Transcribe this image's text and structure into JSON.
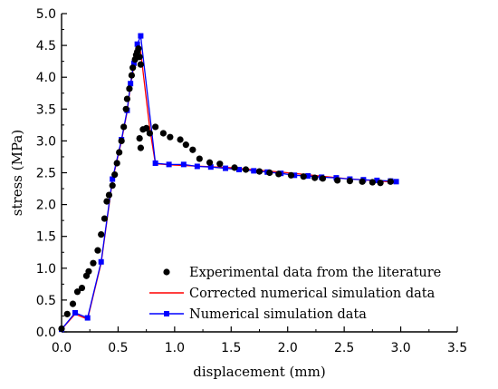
{
  "chart_data": {
    "type": "scatter",
    "title": "",
    "xlabel": "displacement (mm)",
    "ylabel": "stress (MPa)",
    "xlim": [
      0.0,
      3.5
    ],
    "ylim": [
      0.0,
      5.0
    ],
    "xticks": [
      0.0,
      0.5,
      1.0,
      1.5,
      2.0,
      2.5,
      3.0,
      3.5
    ],
    "xtick_labels": [
      "0.0",
      "0.5",
      "1.0",
      "1.5",
      "2.0",
      "2.5",
      "3.0",
      "3.5"
    ],
    "yticks": [
      0.0,
      0.5,
      1.0,
      1.5,
      2.0,
      2.5,
      3.0,
      3.5,
      4.0,
      4.5,
      5.0
    ],
    "ytick_labels": [
      "0.0",
      "0.5",
      "1.0",
      "1.5",
      "2.0",
      "2.5",
      "3.0",
      "3.5",
      "4.0",
      "4.5",
      "5.0"
    ],
    "grid": false,
    "legend_position": "bottom-right",
    "series": [
      {
        "name": "Experimental data from the literature",
        "style": "scatter",
        "marker": "circle",
        "color": "#000000",
        "x": [
          0.0,
          0.05,
          0.1,
          0.14,
          0.18,
          0.22,
          0.24,
          0.28,
          0.32,
          0.35,
          0.38,
          0.4,
          0.42,
          0.45,
          0.47,
          0.49,
          0.51,
          0.53,
          0.55,
          0.57,
          0.58,
          0.6,
          0.62,
          0.63,
          0.65,
          0.66,
          0.67,
          0.68,
          0.69,
          0.7,
          0.69,
          0.7,
          0.72,
          0.75,
          0.78,
          0.83,
          0.9,
          0.96,
          1.05,
          1.1,
          1.16,
          1.22,
          1.31,
          1.4,
          1.53,
          1.63,
          1.75,
          1.84,
          1.92,
          2.03,
          2.14,
          2.24,
          2.31,
          2.44,
          2.55,
          2.66,
          2.75,
          2.82,
          2.91
        ],
        "y": [
          0.05,
          0.28,
          0.44,
          0.63,
          0.69,
          0.88,
          0.95,
          1.08,
          1.28,
          1.53,
          1.78,
          2.05,
          2.15,
          2.3,
          2.47,
          2.65,
          2.82,
          3.0,
          3.22,
          3.5,
          3.66,
          3.82,
          4.03,
          4.15,
          4.28,
          4.35,
          4.4,
          4.45,
          4.32,
          4.2,
          3.04,
          2.89,
          3.18,
          3.2,
          3.12,
          3.22,
          3.12,
          3.06,
          3.02,
          2.94,
          2.86,
          2.72,
          2.66,
          2.64,
          2.58,
          2.55,
          2.52,
          2.5,
          2.48,
          2.46,
          2.44,
          2.42,
          2.41,
          2.38,
          2.37,
          2.36,
          2.35,
          2.34,
          2.36
        ]
      },
      {
        "name": "Corrected numerical simulation data",
        "style": "line",
        "color": "#ff0000",
        "x": [
          0.0,
          0.12,
          0.23,
          0.35,
          0.45,
          0.53,
          0.58,
          0.61,
          0.64,
          0.67,
          0.7,
          0.78,
          0.83,
          1.0,
          1.5,
          2.0,
          2.5,
          2.95
        ],
        "y": [
          0.04,
          0.28,
          0.2,
          1.08,
          2.38,
          3.0,
          3.46,
          3.87,
          4.19,
          4.5,
          4.4,
          3.2,
          2.64,
          2.62,
          2.58,
          2.5,
          2.41,
          2.35
        ]
      },
      {
        "name": "Numerical simulation data",
        "style": "line-marker",
        "marker": "square",
        "color": "#0000ff",
        "x": [
          0.0,
          0.12,
          0.23,
          0.35,
          0.45,
          0.53,
          0.58,
          0.61,
          0.64,
          0.67,
          0.7,
          0.83,
          0.95,
          1.08,
          1.2,
          1.32,
          1.45,
          1.57,
          1.7,
          1.82,
          1.94,
          2.06,
          2.18,
          2.3,
          2.43,
          2.55,
          2.67,
          2.79,
          2.91,
          2.96
        ],
        "y": [
          0.04,
          0.3,
          0.22,
          1.1,
          2.4,
          3.02,
          3.48,
          3.9,
          4.22,
          4.52,
          4.65,
          2.65,
          2.63,
          2.63,
          2.6,
          2.59,
          2.57,
          2.55,
          2.53,
          2.51,
          2.49,
          2.46,
          2.45,
          2.43,
          2.42,
          2.4,
          2.39,
          2.38,
          2.37,
          2.36
        ]
      }
    ]
  }
}
